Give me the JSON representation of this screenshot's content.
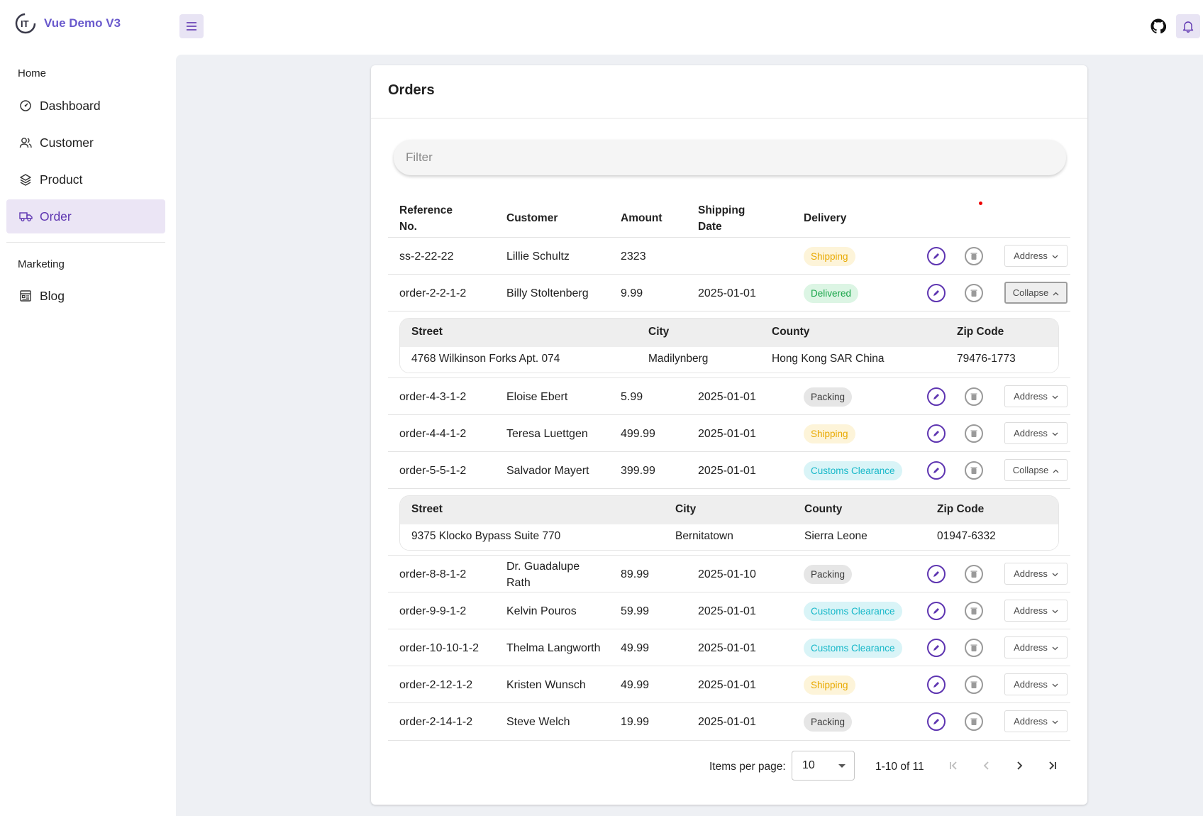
{
  "app": {
    "title": "Vue Demo V3"
  },
  "nav": {
    "home_section": "Home",
    "items": [
      {
        "label": "Dashboard",
        "icon": "gauge-icon",
        "active": false
      },
      {
        "label": "Customer",
        "icon": "users-icon",
        "active": false
      },
      {
        "label": "Product",
        "icon": "layers-icon",
        "active": false
      },
      {
        "label": "Order",
        "icon": "truck-icon",
        "active": true
      }
    ],
    "marketing_section": "Marketing",
    "marketing_items": [
      {
        "label": "Blog",
        "icon": "blog-icon"
      }
    ]
  },
  "topbar": {
    "menu_icon": "menu-icon",
    "github_icon": "github-icon",
    "bell_icon": "bell-icon"
  },
  "page": {
    "title": "Orders",
    "filter_placeholder": "Filter"
  },
  "table": {
    "headers": {
      "reference_line1": "Reference",
      "reference_line2": "No.",
      "customer": "Customer",
      "amount": "Amount",
      "shipping_line1": "Shipping",
      "shipping_line2": "Date",
      "delivery": "Delivery"
    },
    "address_label": "Address",
    "collapse_label": "Collapse",
    "rows": [
      {
        "ref": "ss-2-22-22",
        "customer": "Lillie Schultz",
        "amount": "2323",
        "date": "",
        "status": "Shipping"
      },
      {
        "ref": "order-2-2-1-2",
        "customer": "Billy Stoltenberg",
        "amount": "9.99",
        "date": "2025-01-01",
        "status": "Delivered"
      },
      {
        "ref": "order-4-3-1-2",
        "customer": "Eloise Ebert",
        "amount": "5.99",
        "date": "2025-01-01",
        "status": "Packing"
      },
      {
        "ref": "order-4-4-1-2",
        "customer": "Teresa Luettgen",
        "amount": "499.99",
        "date": "2025-01-01",
        "status": "Shipping"
      },
      {
        "ref": "order-5-5-1-2",
        "customer": "Salvador Mayert",
        "amount": "399.99",
        "date": "2025-01-01",
        "status": "Customs Clearance"
      },
      {
        "ref": "order-8-8-1-2",
        "customer_line1": "Dr. Guadalupe",
        "customer_line2": "Rath",
        "amount": "89.99",
        "date": "2025-01-10",
        "status": "Packing"
      },
      {
        "ref": "order-9-9-1-2",
        "customer": "Kelvin Pouros",
        "amount": "59.99",
        "date": "2025-01-01",
        "status": "Customs Clearance"
      },
      {
        "ref": "order-10-10-1-2",
        "customer": "Thelma Langworth",
        "amount": "49.99",
        "date": "2025-01-01",
        "status": "Customs Clearance"
      },
      {
        "ref": "order-2-12-1-2",
        "customer": "Kristen Wunsch",
        "amount": "49.99",
        "date": "2025-01-01",
        "status": "Shipping"
      },
      {
        "ref": "order-2-14-1-2",
        "customer": "Steve Welch",
        "amount": "19.99",
        "date": "2025-01-01",
        "status": "Packing"
      }
    ],
    "expanded": [
      {
        "headers": [
          "Street",
          "City",
          "County",
          "Zip Code"
        ],
        "values": [
          "4768 Wilkinson Forks Apt. 074",
          "Madilynberg",
          "Hong Kong SAR China",
          "79476-1773"
        ]
      },
      {
        "headers": [
          "Street",
          "City",
          "County",
          "Zip Code"
        ],
        "values": [
          "9375 Klocko Bypass Suite 770",
          "Bernitatown",
          "Sierra Leone",
          "01947-6332"
        ]
      }
    ]
  },
  "pagination": {
    "items_per_page_label": "Items per page:",
    "items_per_page": "10",
    "range": "1-10 of 11"
  },
  "colors": {
    "accent": "#5e35b1",
    "brand": "#6a5acd",
    "shipping": "#e8a900",
    "delivered": "#17a548",
    "customs": "#17b8c9"
  }
}
